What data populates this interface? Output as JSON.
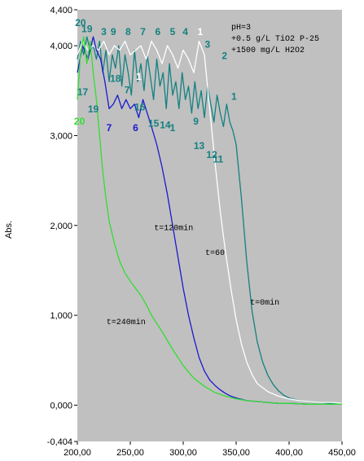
{
  "chart_data": {
    "type": "line",
    "title": "",
    "xlabel": "",
    "ylabel": "Abs.",
    "xlim": [
      200,
      450
    ],
    "ylim": [
      -0.404,
      4.4
    ],
    "x_ticks": [
      "200,00",
      "250,00",
      "300,00",
      "350,00",
      "400,00",
      "450,00"
    ],
    "y_ticks": [
      "4,400",
      "4,000",
      "3,000",
      "2,000",
      "1,000",
      "0,000",
      "-0,404"
    ],
    "y_tick_values": [
      4.4,
      4.0,
      3.0,
      2.0,
      1.0,
      0.0,
      -0.404
    ],
    "plot_background": "#c0c0c0",
    "grid": false,
    "legend_text": [
      "pH=3",
      "+0.5 g/L TiO2 P-25",
      "+1500 mg/L H2O2"
    ],
    "series": [
      {
        "name": "t=0min",
        "color": "#158080",
        "x": [
          200,
          203,
          206,
          209,
          212,
          215,
          218,
          221,
          224,
          227,
          230,
          233,
          236,
          239,
          242,
          245,
          248,
          251,
          254,
          257,
          260,
          263,
          266,
          269,
          272,
          275,
          278,
          281,
          284,
          287,
          290,
          293,
          296,
          299,
          302,
          305,
          308,
          311,
          314,
          317,
          320,
          323,
          326,
          329,
          332,
          335,
          338,
          341,
          344,
          347,
          350,
          355,
          360,
          365,
          370,
          375,
          380,
          385,
          390,
          395,
          400,
          410,
          420,
          430,
          440,
          450
        ],
        "y": [
          3.85,
          4.05,
          3.9,
          4.1,
          3.95,
          4.0,
          3.85,
          4.05,
          3.7,
          3.95,
          3.6,
          3.9,
          3.75,
          4.0,
          3.55,
          3.9,
          3.7,
          3.45,
          3.95,
          3.6,
          3.8,
          3.5,
          3.9,
          3.65,
          3.4,
          3.85,
          3.55,
          3.7,
          3.3,
          3.8,
          3.45,
          3.6,
          3.3,
          3.7,
          3.4,
          3.55,
          3.25,
          3.6,
          3.3,
          3.5,
          3.2,
          3.55,
          3.35,
          3.15,
          3.45,
          3.25,
          3.1,
          3.35,
          3.15,
          3.05,
          2.9,
          2.3,
          1.6,
          1.05,
          0.7,
          0.48,
          0.33,
          0.23,
          0.16,
          0.11,
          0.08,
          0.05,
          0.04,
          0.03,
          0.02,
          0.02
        ]
      },
      {
        "name": "t=60",
        "color": "#ffffff",
        "x": [
          200,
          205,
          210,
          215,
          220,
          225,
          230,
          235,
          240,
          245,
          250,
          255,
          260,
          265,
          270,
          275,
          280,
          285,
          290,
          295,
          300,
          305,
          310,
          315,
          320,
          325,
          330,
          335,
          340,
          345,
          350,
          355,
          360,
          365,
          370,
          380,
          390,
          400,
          410,
          420,
          430,
          440,
          450
        ],
        "y": [
          3.9,
          4.05,
          3.95,
          4.0,
          3.95,
          4.05,
          3.9,
          4.0,
          3.95,
          4.05,
          3.9,
          3.95,
          4.0,
          3.85,
          4.05,
          3.95,
          3.8,
          4.0,
          3.9,
          3.75,
          3.95,
          3.85,
          3.7,
          4.05,
          3.9,
          3.3,
          2.7,
          2.15,
          1.7,
          1.3,
          0.95,
          0.68,
          0.48,
          0.34,
          0.24,
          0.15,
          0.1,
          0.07,
          0.05,
          0.04,
          0.03,
          0.03,
          0.02
        ]
      },
      {
        "name": "t=120min",
        "color": "#1a1acd",
        "x": [
          200,
          205,
          210,
          215,
          218,
          222,
          226,
          230,
          234,
          238,
          242,
          246,
          250,
          254,
          258,
          262,
          266,
          270,
          275,
          280,
          285,
          290,
          295,
          300,
          305,
          310,
          315,
          320,
          325,
          330,
          335,
          340,
          345,
          350,
          360,
          370,
          380,
          390,
          400,
          420,
          450
        ],
        "y": [
          3.7,
          4.0,
          3.85,
          4.1,
          3.95,
          3.85,
          3.6,
          3.3,
          3.35,
          3.45,
          3.3,
          3.4,
          3.3,
          3.35,
          3.2,
          3.4,
          3.25,
          3.1,
          2.9,
          2.65,
          2.35,
          2.0,
          1.65,
          1.3,
          1.0,
          0.75,
          0.53,
          0.38,
          0.28,
          0.22,
          0.17,
          0.13,
          0.1,
          0.08,
          0.05,
          0.04,
          0.03,
          0.02,
          0.02,
          0.01,
          0.01
        ]
      },
      {
        "name": "t=240min",
        "color": "#33dd33",
        "x": [
          200,
          203,
          206,
          209,
          212,
          215,
          218,
          221,
          224,
          227,
          230,
          235,
          240,
          245,
          250,
          255,
          260,
          265,
          270,
          280,
          290,
          300,
          310,
          320,
          330,
          340,
          350,
          360,
          370,
          380,
          390,
          400,
          420,
          450
        ],
        "y": [
          3.4,
          3.9,
          4.1,
          3.8,
          4.05,
          3.7,
          3.4,
          3.0,
          2.6,
          2.3,
          2.05,
          1.8,
          1.6,
          1.47,
          1.38,
          1.3,
          1.22,
          1.12,
          1.0,
          0.82,
          0.62,
          0.44,
          0.3,
          0.21,
          0.14,
          0.1,
          0.07,
          0.05,
          0.04,
          0.03,
          0.02,
          0.02,
          0.01,
          0.01
        ]
      }
    ],
    "curve_labels": [
      {
        "text": "t=120min",
        "x": 291,
        "y": 1.95
      },
      {
        "text": "t=60",
        "x": 330,
        "y": 1.67
      },
      {
        "text": "t=0min",
        "x": 377,
        "y": 1.12
      },
      {
        "text": "t=240min",
        "x": 246,
        "y": 0.9
      }
    ],
    "point_labels": [
      {
        "text": "20",
        "x": 203,
        "y": 4.22,
        "color": "#158080"
      },
      {
        "text": "19",
        "x": 209,
        "y": 4.15,
        "color": "#158080"
      },
      {
        "text": "3",
        "x": 225,
        "y": 4.12,
        "color": "#158080"
      },
      {
        "text": "9",
        "x": 234,
        "y": 4.12,
        "color": "#158080"
      },
      {
        "text": "8",
        "x": 248,
        "y": 4.12,
        "color": "#158080"
      },
      {
        "text": "7",
        "x": 262,
        "y": 4.12,
        "color": "#158080"
      },
      {
        "text": "6",
        "x": 276,
        "y": 4.12,
        "color": "#158080"
      },
      {
        "text": "5",
        "x": 290,
        "y": 4.12,
        "color": "#158080"
      },
      {
        "text": "4",
        "x": 302,
        "y": 4.12,
        "color": "#158080"
      },
      {
        "text": "1",
        "x": 316,
        "y": 4.12,
        "color": "#ffffff"
      },
      {
        "text": "3",
        "x": 323,
        "y": 3.98,
        "color": "#158080"
      },
      {
        "text": "2",
        "x": 339,
        "y": 3.85,
        "color": "#158080"
      },
      {
        "text": "18",
        "x": 236,
        "y": 3.6,
        "color": "#158080"
      },
      {
        "text": "7",
        "x": 247,
        "y": 3.47,
        "color": "#158080"
      },
      {
        "text": "1",
        "x": 258,
        "y": 3.62,
        "color": "#ffffff"
      },
      {
        "text": "16",
        "x": 259,
        "y": 3.28,
        "color": "#158080"
      },
      {
        "text": "17",
        "x": 205,
        "y": 3.45,
        "color": "#158080"
      },
      {
        "text": "20",
        "x": 202,
        "y": 3.12,
        "color": "#33dd33"
      },
      {
        "text": "19",
        "x": 215,
        "y": 3.26,
        "color": "#158080"
      },
      {
        "text": "7",
        "x": 230,
        "y": 3.05,
        "color": "#1a1acd"
      },
      {
        "text": "6",
        "x": 255,
        "y": 3.05,
        "color": "#1a1acd"
      },
      {
        "text": "15",
        "x": 272,
        "y": 3.1,
        "color": "#158080"
      },
      {
        "text": "14",
        "x": 283,
        "y": 3.08,
        "color": "#158080"
      },
      {
        "text": "1",
        "x": 290,
        "y": 3.05,
        "color": "#158080"
      },
      {
        "text": "9",
        "x": 312,
        "y": 3.12,
        "color": "#158080"
      },
      {
        "text": "13",
        "x": 315,
        "y": 2.85,
        "color": "#158080"
      },
      {
        "text": "12",
        "x": 327,
        "y": 2.75,
        "color": "#158080"
      },
      {
        "text": "11",
        "x": 333,
        "y": 2.7,
        "color": "#158080"
      },
      {
        "text": "1",
        "x": 348,
        "y": 3.4,
        "color": "#158080"
      }
    ]
  }
}
